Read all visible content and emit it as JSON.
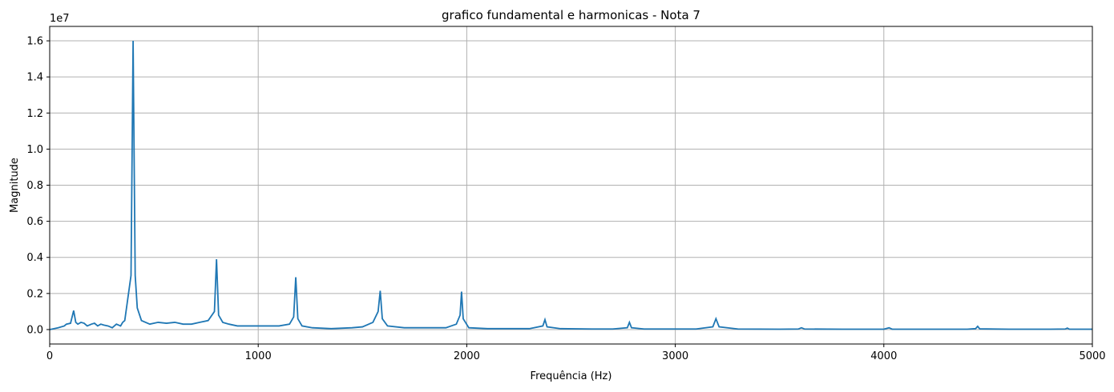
{
  "chart_data": {
    "type": "line",
    "title": "grafico fundamental e harmonicas - Nota 7",
    "xlabel": "Frequência (Hz)",
    "ylabel": "Magnitude",
    "y_offset_label": "1e7",
    "xlim": [
      0,
      5000
    ],
    "ylim": [
      -0.08,
      1.68
    ],
    "y_scale_multiplier": 10000000,
    "grid": true,
    "line_color": "#1f77b4",
    "x_ticks": [
      0,
      1000,
      2000,
      3000,
      4000,
      5000
    ],
    "x_tick_labels": [
      "0",
      "1000",
      "2000",
      "3000",
      "4000",
      "5000"
    ],
    "y_ticks": [
      0.0,
      0.2,
      0.4,
      0.6,
      0.8,
      1.0,
      1.2,
      1.4,
      1.6
    ],
    "y_tick_labels": [
      "0.0",
      "0.2",
      "0.4",
      "0.6",
      "0.8",
      "1.0",
      "1.2",
      "1.4",
      "1.6"
    ],
    "series": [
      {
        "x": [
          0,
          60,
          100,
          150,
          180,
          195,
          200,
          210,
          230,
          260,
          300,
          360,
          390,
          400,
          410,
          420,
          440,
          480,
          520,
          560,
          600,
          640,
          680,
          720,
          760,
          790,
          800,
          810,
          830,
          860,
          900,
          950,
          1000,
          1050,
          1100,
          1150,
          1170,
          1180,
          1190,
          1210,
          1260,
          1350,
          1450,
          1500,
          1550,
          1575,
          1585,
          1595,
          1620,
          1700,
          1800,
          1900,
          1950,
          1968,
          1975,
          1983,
          2010,
          2100,
          2200,
          2300,
          2365,
          2375,
          2385,
          2450,
          2600,
          2700,
          2770,
          2780,
          2790,
          2850,
          3000,
          3100,
          3180,
          3195,
          3210,
          3300,
          3500,
          3590,
          3605,
          3620,
          3800,
          4000,
          4025,
          4040,
          4200,
          4400,
          4440,
          4450,
          4460,
          4600,
          4800,
          4870,
          4880,
          4890,
          5000
        ],
        "y": [
          0.0,
          0.03,
          0.025,
          0.04,
          0.02,
          0.035,
          0.02,
          0.04,
          0.03,
          0.035,
          0.04,
          0.09,
          0.3,
          1.6,
          0.3,
          0.12,
          0.05,
          0.03,
          0.04,
          0.035,
          0.04,
          0.03,
          0.03,
          0.04,
          0.05,
          0.1,
          0.39,
          0.08,
          0.04,
          0.03,
          0.02,
          0.02,
          0.02,
          0.02,
          0.02,
          0.03,
          0.07,
          0.29,
          0.06,
          0.02,
          0.01,
          0.005,
          0.01,
          0.015,
          0.04,
          0.1,
          0.215,
          0.06,
          0.02,
          0.01,
          0.01,
          0.01,
          0.03,
          0.08,
          0.21,
          0.06,
          0.01,
          0.005,
          0.005,
          0.005,
          0.02,
          0.055,
          0.015,
          0.005,
          0.003,
          0.003,
          0.01,
          0.04,
          0.01,
          0.003,
          0.003,
          0.003,
          0.015,
          0.06,
          0.015,
          0.003,
          0.002,
          0.003,
          0.01,
          0.003,
          0.002,
          0.002,
          0.01,
          0.002,
          0.002,
          0.002,
          0.005,
          0.018,
          0.004,
          0.002,
          0.002,
          0.003,
          0.008,
          0.002,
          0.002
        ]
      }
    ],
    "low_frequency_detail": {
      "x": [
        0,
        40,
        70,
        80,
        100,
        115,
        125,
        135,
        150,
        165,
        180,
        200,
        215,
        230,
        245,
        260,
        280,
        300,
        320,
        340,
        350,
        360
      ],
      "y": [
        0.0,
        0.01,
        0.02,
        0.03,
        0.035,
        0.105,
        0.04,
        0.03,
        0.04,
        0.035,
        0.02,
        0.03,
        0.035,
        0.02,
        0.03,
        0.025,
        0.02,
        0.01,
        0.03,
        0.02,
        0.04,
        0.05
      ]
    }
  }
}
